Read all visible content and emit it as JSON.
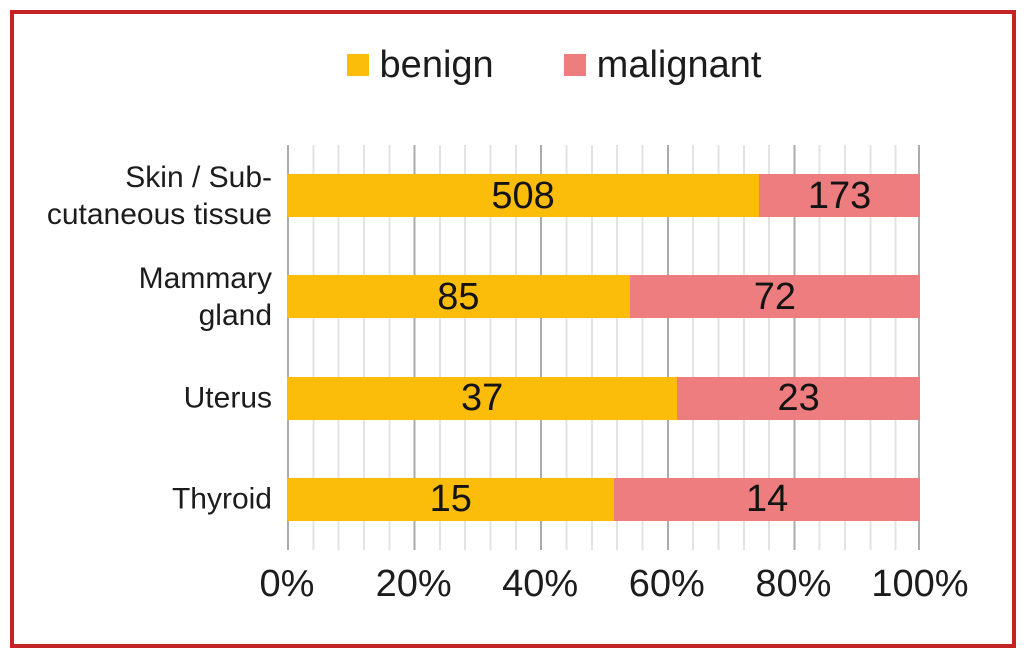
{
  "frame": {
    "border_color": "#c32322"
  },
  "legend": {
    "position": "top",
    "items": [
      {
        "label": "benign",
        "color": "#fcbd0a"
      },
      {
        "label": "malignant",
        "color": "#ee7d80"
      }
    ]
  },
  "chart_data": {
    "type": "bar",
    "orientation": "horizontal",
    "stacked": "100%",
    "title": "",
    "categories": [
      "Skin / Sub-cutaneous tissue",
      "Mammary gland",
      "Uterus",
      "Thyroid"
    ],
    "category_label_lines": [
      [
        "Skin / Sub-",
        "cutaneous tissue"
      ],
      [
        "Mammary",
        "gland"
      ],
      [
        "Uterus"
      ],
      [
        "Thyroid"
      ]
    ],
    "series": [
      {
        "name": "benign",
        "color": "#fcbd0a",
        "values": [
          508,
          85,
          37,
          15
        ]
      },
      {
        "name": "malignant",
        "color": "#ee7d80",
        "values": [
          173,
          72,
          23,
          14
        ]
      }
    ],
    "x_axis": {
      "min": 0,
      "max": 100,
      "ticks": [
        "0%",
        "20%",
        "40%",
        "60%",
        "80%",
        "100%"
      ]
    },
    "grid": {
      "minor_step_pct": 4,
      "major_step_pct": 20,
      "minor_color": "#e3e3e3",
      "major_color": "#ababab"
    }
  }
}
